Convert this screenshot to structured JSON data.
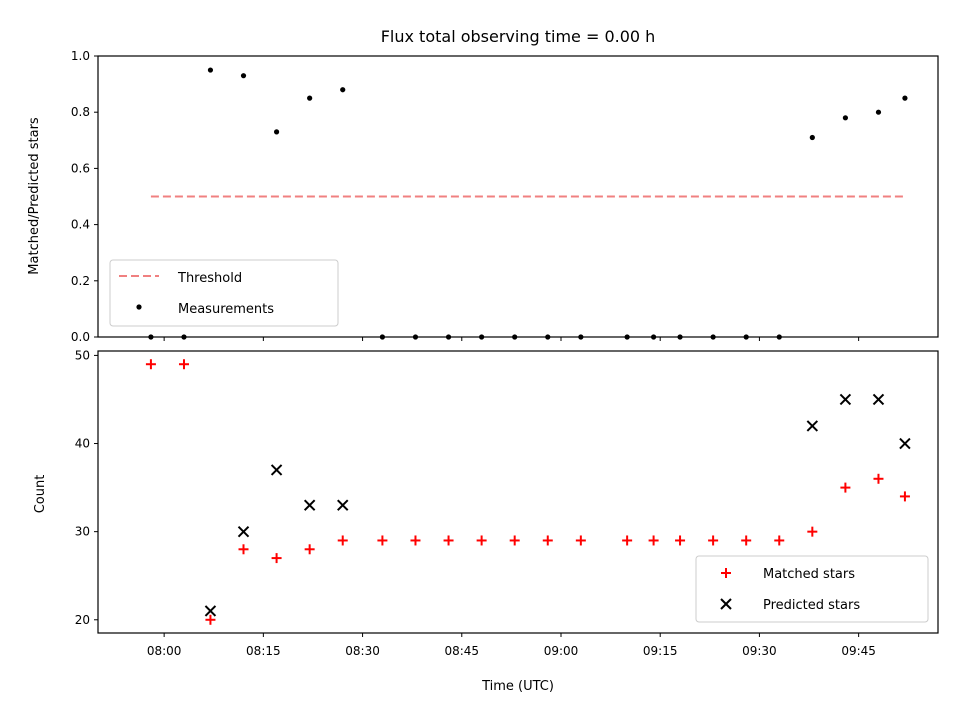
{
  "chart_data": [
    {
      "type": "scatter",
      "title": "Flux total observing time = 0.00 h",
      "xlabel": "",
      "ylabel": "Matched/Predicted stars",
      "ylim": [
        0,
        1.0
      ],
      "yticks": [
        "0.0",
        "0.2",
        "0.4",
        "0.6",
        "0.8",
        "1.0"
      ],
      "legend_position": "lower-left",
      "threshold": {
        "name": "Threshold",
        "value": 0.5,
        "x_range": [
          "07:58",
          "09:52"
        ],
        "color": "#f08080"
      },
      "series": [
        {
          "name": "Measurements",
          "color": "#000000",
          "points": [
            [
              "07:58",
              0.0
            ],
            [
              "08:03",
              0.0
            ],
            [
              "08:07",
              0.95
            ],
            [
              "08:12",
              0.93
            ],
            [
              "08:17",
              0.73
            ],
            [
              "08:22",
              0.85
            ],
            [
              "08:27",
              0.88
            ],
            [
              "08:33",
              0.0
            ],
            [
              "08:38",
              0.0
            ],
            [
              "08:43",
              0.0
            ],
            [
              "08:48",
              0.0
            ],
            [
              "08:53",
              0.0
            ],
            [
              "08:58",
              0.0
            ],
            [
              "09:03",
              0.0
            ],
            [
              "09:10",
              0.0
            ],
            [
              "09:14",
              0.0
            ],
            [
              "09:18",
              0.0
            ],
            [
              "09:23",
              0.0
            ],
            [
              "09:28",
              0.0
            ],
            [
              "09:33",
              0.0
            ],
            [
              "09:38",
              0.71
            ],
            [
              "09:43",
              0.78
            ],
            [
              "09:48",
              0.8
            ],
            [
              "09:52",
              0.85
            ]
          ]
        }
      ]
    },
    {
      "type": "scatter",
      "title": "",
      "xlabel": "Time (UTC)",
      "ylabel": "Count",
      "ylim": [
        18.5,
        50.5
      ],
      "yticks": [
        "20",
        "30",
        "40",
        "50"
      ],
      "xticks": [
        "08:00",
        "08:15",
        "08:30",
        "08:45",
        "09:00",
        "09:15",
        "09:30",
        "09:45"
      ],
      "xlim": [
        "07:50",
        "09:57"
      ],
      "legend_position": "lower-right",
      "series": [
        {
          "name": "Matched stars",
          "marker": "plus",
          "color": "#ff0000",
          "points": [
            [
              "07:58",
              49
            ],
            [
              "08:03",
              49
            ],
            [
              "08:07",
              20
            ],
            [
              "08:12",
              28
            ],
            [
              "08:17",
              27
            ],
            [
              "08:22",
              28
            ],
            [
              "08:27",
              29
            ],
            [
              "08:33",
              29
            ],
            [
              "08:38",
              29
            ],
            [
              "08:43",
              29
            ],
            [
              "08:48",
              29
            ],
            [
              "08:53",
              29
            ],
            [
              "08:58",
              29
            ],
            [
              "09:03",
              29
            ],
            [
              "09:10",
              29
            ],
            [
              "09:14",
              29
            ],
            [
              "09:18",
              29
            ],
            [
              "09:23",
              29
            ],
            [
              "09:28",
              29
            ],
            [
              "09:33",
              29
            ],
            [
              "09:38",
              30
            ],
            [
              "09:43",
              35
            ],
            [
              "09:48",
              36
            ],
            [
              "09:52",
              34
            ]
          ]
        },
        {
          "name": "Predicted stars",
          "marker": "x",
          "color": "#000000",
          "points": [
            [
              "08:07",
              21
            ],
            [
              "08:12",
              30
            ],
            [
              "08:17",
              37
            ],
            [
              "08:22",
              33
            ],
            [
              "08:27",
              33
            ],
            [
              "09:38",
              42
            ],
            [
              "09:43",
              45
            ],
            [
              "09:48",
              45
            ],
            [
              "09:52",
              40
            ]
          ]
        }
      ]
    }
  ]
}
